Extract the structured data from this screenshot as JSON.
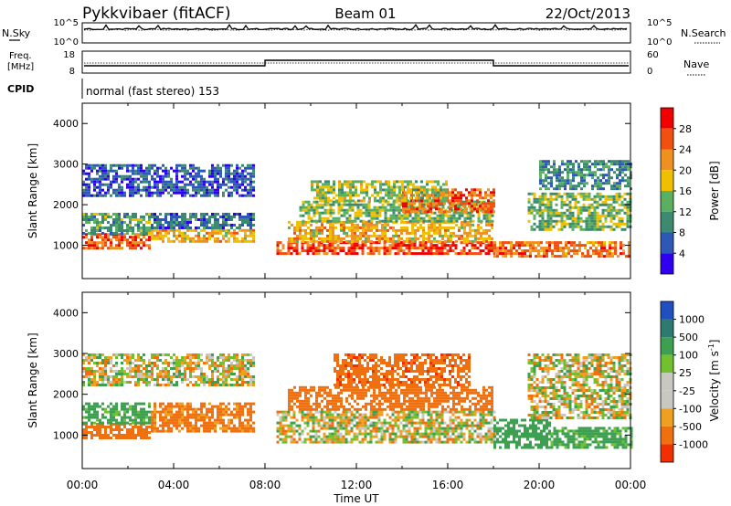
{
  "header": {
    "station": "Pykkvibaer (fitACF)",
    "beam": "Beam 01",
    "date": "22/Oct/2013"
  },
  "noise_panel": {
    "left_label": "N.Sky",
    "right_label": "N.Search",
    "left_ticks": [
      "10^5",
      "10^0"
    ],
    "right_ticks": [
      "10^5",
      "10^0"
    ]
  },
  "freq_panel": {
    "left_label_1": "Freq.",
    "left_label_2": "[MHz]",
    "right_label": "Nave",
    "left_ticks": [
      "18",
      "8"
    ],
    "right_ticks": [
      "60",
      "0"
    ]
  },
  "cpid_panel": {
    "label": "CPID",
    "mode_text": "normal (fast stereo) 153"
  },
  "power_panel": {
    "ylabel": "Slant Range [km]",
    "yticks": [
      "4000",
      "3000",
      "2000",
      "1000"
    ],
    "colorbar_label": "Power [dB]",
    "colorbar_ticks": [
      "28",
      "24",
      "20",
      "16",
      "12",
      "8",
      "4"
    ],
    "colors": [
      "#2f00f0",
      "#2d58b8",
      "#3d8a70",
      "#58b060",
      "#f0c000",
      "#f09020",
      "#f05010",
      "#f00000"
    ]
  },
  "velocity_panel": {
    "ylabel": "Slant Range [km]",
    "yticks": [
      "4000",
      "3000",
      "2000",
      "1000"
    ],
    "colorbar_label_main": "Velocity [m s",
    "colorbar_label_exp": "-1",
    "colorbar_label_end": "]",
    "colorbar_ticks": [
      "1000",
      "500",
      "100",
      "25",
      "-25",
      "-100",
      "-500",
      "-1000"
    ],
    "colors": [
      "#2050c0",
      "#2e7a70",
      "#3ca050",
      "#70c030",
      "#c8c8c0",
      "#c8c8c0",
      "#f0a020",
      "#f07010",
      "#f03000"
    ]
  },
  "xaxis": {
    "label": "Time UT",
    "ticks": [
      "00:00",
      "04:00",
      "08:00",
      "12:00",
      "16:00",
      "20:00",
      "00:00"
    ]
  },
  "chart_data": {
    "type": "heatmap",
    "xlabel": "Time UT",
    "x_range_hours": [
      0,
      24
    ],
    "ylabel": "Slant Range [km]",
    "ylim": [
      180,
      4500
    ],
    "panels": [
      {
        "name": "Power",
        "units": "dB",
        "range": [
          0,
          30
        ],
        "regions": [
          {
            "t0": 0.0,
            "t1": 3.0,
            "r0": 900,
            "r1": 1300,
            "value": 26
          },
          {
            "t0": 0.0,
            "t1": 3.0,
            "r0": 1300,
            "r1": 1800,
            "value": 12
          },
          {
            "t0": 3.0,
            "t1": 7.5,
            "r0": 1100,
            "r1": 1400,
            "value": 20
          },
          {
            "t0": 3.0,
            "t1": 7.5,
            "r0": 1400,
            "r1": 1800,
            "value": 8
          },
          {
            "t0": 0.0,
            "t1": 7.5,
            "r0": 2200,
            "r1": 3000,
            "value": 6
          },
          {
            "t0": 8.5,
            "t1": 18.0,
            "r0": 800,
            "r1": 1100,
            "value": 27
          },
          {
            "t0": 9.0,
            "t1": 18.0,
            "r0": 1100,
            "r1": 1600,
            "value": 20
          },
          {
            "t0": 9.5,
            "t1": 18.0,
            "r0": 1600,
            "r1": 2100,
            "value": 14
          },
          {
            "t0": 14.0,
            "t1": 18.0,
            "r0": 1800,
            "r1": 2400,
            "value": 25
          },
          {
            "t0": 10.0,
            "t1": 16.0,
            "r0": 2100,
            "r1": 2600,
            "value": 16
          },
          {
            "t0": 18.0,
            "t1": 24.0,
            "r0": 700,
            "r1": 1100,
            "value": 24
          },
          {
            "t0": 19.5,
            "t1": 24.0,
            "r0": 1400,
            "r1": 2300,
            "value": 14
          },
          {
            "t0": 20.0,
            "t1": 24.0,
            "r0": 2400,
            "r1": 3100,
            "value": 10
          }
        ]
      },
      {
        "name": "Velocity",
        "units": "m s^-1",
        "range": [
          -1000,
          1000
        ],
        "regions": [
          {
            "t0": 0.0,
            "t1": 3.0,
            "r0": 900,
            "r1": 1300,
            "value": -300
          },
          {
            "t0": 0.0,
            "t1": 3.0,
            "r0": 1300,
            "r1": 1800,
            "value": 200
          },
          {
            "t0": 3.0,
            "t1": 7.5,
            "r0": 1100,
            "r1": 1800,
            "value": -200
          },
          {
            "t0": 0.0,
            "t1": 7.5,
            "r0": 2200,
            "r1": 3000,
            "value": 0
          },
          {
            "t0": 8.5,
            "t1": 18.0,
            "r0": 800,
            "r1": 1600,
            "value": 0
          },
          {
            "t0": 9.0,
            "t1": 18.0,
            "r0": 1600,
            "r1": 2200,
            "value": -300
          },
          {
            "t0": 11.0,
            "t1": 17.0,
            "r0": 2200,
            "r1": 3000,
            "value": -400
          },
          {
            "t0": 18.0,
            "t1": 20.5,
            "r0": 700,
            "r1": 1400,
            "value": 300
          },
          {
            "t0": 20.5,
            "t1": 24.0,
            "r0": 700,
            "r1": 1200,
            "value": 200
          },
          {
            "t0": 19.5,
            "t1": 24.0,
            "r0": 1400,
            "r1": 3000,
            "value": 0
          }
        ]
      }
    ]
  }
}
